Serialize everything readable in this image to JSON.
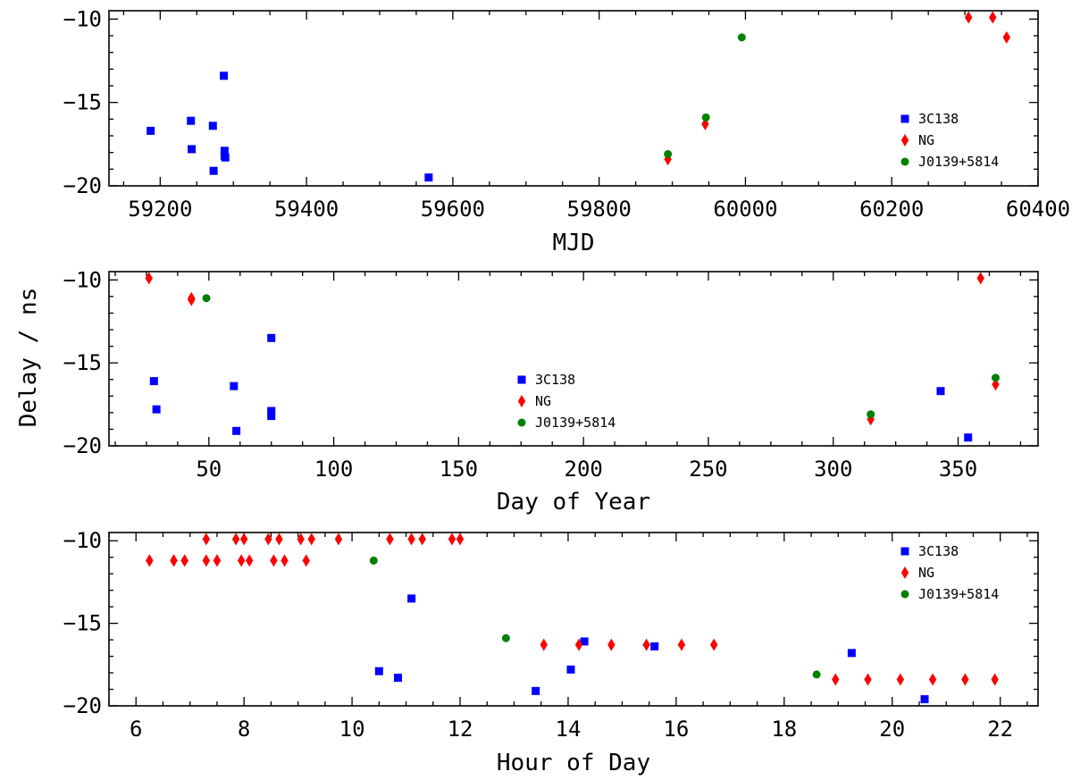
{
  "figure": {
    "shared_ylabel": "Delay / ns"
  },
  "chart_data": [
    {
      "type": "scatter",
      "title": "",
      "xlabel": "MJD",
      "ylabel": "",
      "xlim": [
        59130,
        60400
      ],
      "ylim": [
        -20.0,
        -9.5
      ],
      "xticks": [
        59200,
        59400,
        59600,
        59800,
        60000,
        60200,
        60400
      ],
      "yticks": [
        -10,
        -15,
        -20
      ],
      "legend_position": "lower-right",
      "series": [
        {
          "name": "3C138",
          "color": "#0000ff",
          "marker": "square",
          "x": [
            59187,
            59242,
            59243,
            59272,
            59273,
            59287,
            59288,
            59288,
            59289,
            59567
          ],
          "y": [
            -16.7,
            -16.1,
            -17.8,
            -16.4,
            -19.1,
            -13.4,
            -17.9,
            -18.2,
            -18.3,
            -19.5
          ]
        },
        {
          "name": "NG",
          "color": "#ff0000",
          "marker": "diamond",
          "x": [
            59894,
            59945,
            60305,
            60338,
            60357
          ],
          "y": [
            -18.4,
            -16.3,
            -9.9,
            -9.9,
            -11.1
          ]
        },
        {
          "name": "J0139+5814",
          "color": "#008000",
          "marker": "circle",
          "x": [
            59894,
            59946,
            59995
          ],
          "y": [
            -18.1,
            -15.9,
            -11.1
          ]
        }
      ]
    },
    {
      "type": "scatter",
      "title": "",
      "xlabel": "Day of Year",
      "ylabel": "",
      "xlim": [
        10,
        382
      ],
      "ylim": [
        -20.0,
        -9.5
      ],
      "xticks": [
        50,
        100,
        150,
        200,
        250,
        300,
        350
      ],
      "yticks": [
        -10,
        -15,
        -20
      ],
      "legend_position": "center-bottom",
      "series": [
        {
          "name": "3C138",
          "color": "#0000ff",
          "marker": "square",
          "x": [
            28,
            29,
            60,
            61,
            75,
            75,
            75,
            343,
            354
          ],
          "y": [
            -16.1,
            -17.8,
            -16.4,
            -19.1,
            -13.5,
            -17.9,
            -18.2,
            -16.7,
            -19.5
          ]
        },
        {
          "name": "NG",
          "color": "#ff0000",
          "marker": "diamond",
          "x": [
            26,
            43,
            43,
            315,
            359,
            365
          ],
          "y": [
            -9.9,
            -11.1,
            -11.2,
            -18.4,
            -9.9,
            -16.3
          ]
        },
        {
          "name": "J0139+5814",
          "color": "#008000",
          "marker": "circle",
          "x": [
            49,
            315,
            365
          ],
          "y": [
            -11.1,
            -18.1,
            -15.9
          ]
        }
      ]
    },
    {
      "type": "scatter",
      "title": "",
      "xlabel": "Hour of Day",
      "ylabel": "",
      "xlim": [
        5.5,
        22.7
      ],
      "ylim": [
        -20.0,
        -9.5
      ],
      "xticks": [
        6,
        8,
        10,
        12,
        14,
        16,
        18,
        20,
        22
      ],
      "yticks": [
        -10,
        -15,
        -20
      ],
      "legend_position": "top-right",
      "series": [
        {
          "name": "3C138",
          "color": "#0000ff",
          "marker": "square",
          "x": [
            10.5,
            10.85,
            11.1,
            13.4,
            14.05,
            14.3,
            15.6,
            19.25,
            20.6
          ],
          "y": [
            -17.9,
            -18.3,
            -13.5,
            -19.1,
            -17.8,
            -16.1,
            -16.4,
            -16.8,
            -19.6
          ]
        },
        {
          "name": "NG",
          "color": "#ff0000",
          "marker": "diamond",
          "x": [
            6.25,
            6.7,
            6.9,
            7.3,
            7.5,
            7.85,
            8.0,
            8.45,
            8.65,
            9.05,
            9.25,
            9.75,
            10.7,
            11.1,
            11.3,
            11.85,
            12.0,
            6.25,
            6.7,
            6.9,
            7.3,
            7.5,
            7.95,
            8.1,
            8.55,
            8.75,
            9.15,
            13.55,
            14.2,
            14.8,
            15.45,
            16.1,
            16.7,
            18.95,
            19.55,
            20.15,
            20.75,
            21.35,
            21.9
          ],
          "y": [
            -11.2,
            -11.2,
            -11.2,
            -9.9,
            -11.2,
            -9.9,
            -9.9,
            -9.9,
            -9.9,
            -9.9,
            -9.9,
            -9.9,
            -9.9,
            -9.9,
            -9.9,
            -9.9,
            -9.9,
            -11.2,
            -11.2,
            -11.2,
            -11.2,
            -11.2,
            -11.2,
            -11.2,
            -11.2,
            -11.2,
            -11.2,
            -16.3,
            -16.3,
            -16.3,
            -16.3,
            -16.3,
            -16.3,
            -18.4,
            -18.4,
            -18.4,
            -18.4,
            -18.4,
            -18.4
          ]
        },
        {
          "name": "J0139+5814",
          "color": "#008000",
          "marker": "circle",
          "x": [
            10.4,
            12.85,
            18.6
          ],
          "y": [
            -11.2,
            -15.9,
            -18.1
          ]
        }
      ]
    }
  ]
}
